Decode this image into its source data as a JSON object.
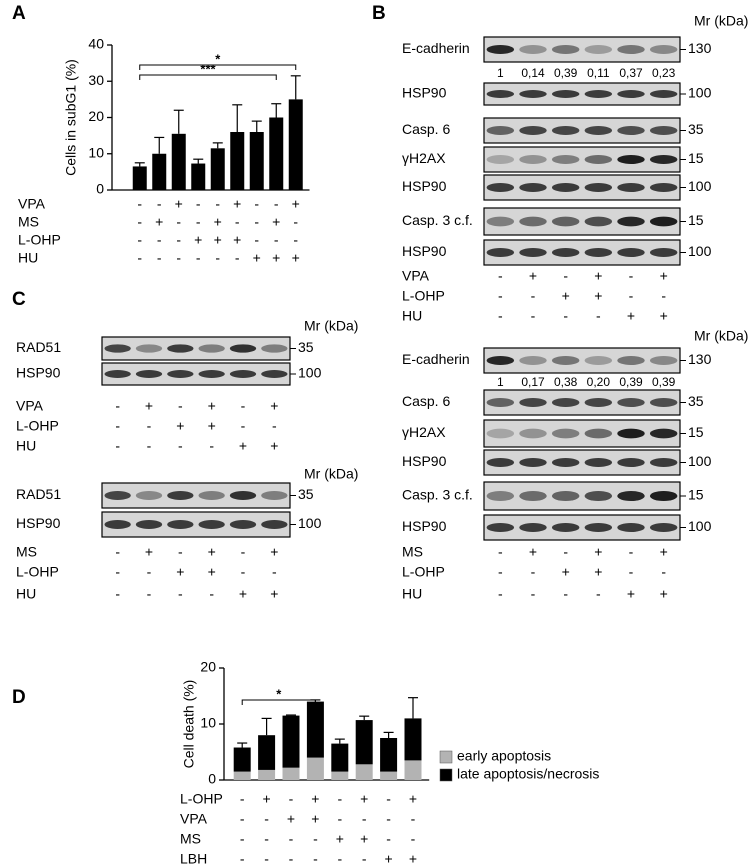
{
  "panel_labels": [
    "A",
    "B",
    "C",
    "D"
  ],
  "chart_data": [
    {
      "type": "bar",
      "ylabel": "Cells in subG1 (%)",
      "values": [
        6.5,
        10,
        15.5,
        7.3,
        11.5,
        16,
        16,
        20,
        25
      ],
      "errors": [
        1,
        4.5,
        6.5,
        1.2,
        1.5,
        7.5,
        3,
        3.8,
        6.5
      ],
      "color": "#000000",
      "ylim": [
        0,
        40
      ],
      "yticks": [
        0,
        10,
        20,
        30,
        40
      ],
      "significance": [
        "*",
        "***"
      ],
      "conditions": [
        {
          "label": "VPA",
          "signs": [
            "-",
            "-",
            "+",
            "-",
            "-",
            "+",
            "-",
            "-",
            "+"
          ]
        },
        {
          "label": "MS",
          "signs": [
            "-",
            "+",
            "-",
            "-",
            "+",
            "-",
            "-",
            "+",
            "-"
          ]
        },
        {
          "label": "L-OHP",
          "signs": [
            "-",
            "-",
            "-",
            "+",
            "+",
            "+",
            "-",
            "-",
            "-"
          ]
        },
        {
          "label": "HU",
          "signs": [
            "-",
            "-",
            "-",
            "-",
            "-",
            "-",
            "+",
            "+",
            "+"
          ]
        }
      ]
    },
    {
      "type": "stacked_bar",
      "ylabel": "Cell death (%)",
      "series": [
        {
          "name": "early apoptosis",
          "color": "#b3b3b3",
          "values": [
            1.5,
            1.8,
            2.2,
            4,
            1.5,
            2.8,
            1.5,
            3.5
          ]
        },
        {
          "name": "late apoptosis/necrosis",
          "color": "#000000",
          "values": [
            4.3,
            6.2,
            9.3,
            10,
            5,
            7.9,
            6,
            7.5
          ],
          "errors": [
            0.8,
            3,
            0.1,
            0.3,
            0.8,
            0.7,
            1,
            3.7
          ]
        }
      ],
      "ylim": [
        0,
        20
      ],
      "yticks": [
        0,
        10,
        20
      ],
      "significance": [
        "*"
      ],
      "conditions": [
        {
          "label": "L-OHP",
          "signs": [
            "-",
            "+",
            "-",
            "+",
            "-",
            "+",
            "-",
            "+"
          ]
        },
        {
          "label": "VPA",
          "signs": [
            "-",
            "-",
            "+",
            "+",
            "-",
            "-",
            "-",
            "-"
          ]
        },
        {
          "label": "MS",
          "signs": [
            "-",
            "-",
            "-",
            "-",
            "+",
            "+",
            "-",
            "-"
          ]
        },
        {
          "label": "LBH",
          "signs": [
            "-",
            "-",
            "-",
            "-",
            "-",
            "-",
            "+",
            "+"
          ]
        }
      ]
    }
  ],
  "blots": [
    {
      "mr_header": "Mr (kDa)",
      "rows": [
        {
          "label": "E-cadherin",
          "mr": "130",
          "quant": [
            "1",
            "0,14",
            "0,39",
            "0,11",
            "0,37",
            "0,23"
          ]
        },
        {
          "label": "HSP90",
          "mr": "100"
        },
        {
          "label": "Casp. 6",
          "mr": "35"
        },
        {
          "label": "γH2AX",
          "mr": "15"
        },
        {
          "label": "HSP90",
          "mr": "100"
        },
        {
          "label": "Casp. 3 c.f.",
          "mr": "15"
        },
        {
          "label": "HSP90",
          "mr": "100"
        }
      ],
      "conditions": [
        {
          "label": "VPA",
          "signs": [
            "-",
            "+",
            "-",
            "+",
            "-",
            "+"
          ]
        },
        {
          "label": "L-OHP",
          "signs": [
            "-",
            "-",
            "+",
            "+",
            "-",
            "-"
          ]
        },
        {
          "label": "HU",
          "signs": [
            "-",
            "-",
            "-",
            "-",
            "+",
            "+"
          ]
        }
      ]
    },
    {
      "mr_header": "Mr (kDa)",
      "rows": [
        {
          "label": "E-cadherin",
          "mr": "130",
          "quant": [
            "1",
            "0,17",
            "0,38",
            "0,20",
            "0,39",
            "0,39"
          ]
        },
        {
          "label": "Casp. 6",
          "mr": "35"
        },
        {
          "label": "γH2AX",
          "mr": "15"
        },
        {
          "label": "HSP90",
          "mr": "100"
        },
        {
          "label": "Casp. 3 c.f.",
          "mr": "15"
        },
        {
          "label": "HSP90",
          "mr": "100"
        }
      ],
      "conditions": [
        {
          "label": "MS",
          "signs": [
            "-",
            "+",
            "-",
            "+",
            "-",
            "+"
          ]
        },
        {
          "label": "L-OHP",
          "signs": [
            "-",
            "-",
            "+",
            "+",
            "-",
            "-"
          ]
        },
        {
          "label": "HU",
          "signs": [
            "-",
            "-",
            "-",
            "-",
            "+",
            "+"
          ]
        }
      ]
    },
    {
      "mr_header": "Mr (kDa)",
      "rows": [
        {
          "label": "RAD51",
          "mr": "35"
        },
        {
          "label": "HSP90",
          "mr": "100"
        }
      ],
      "conditions": [
        {
          "label": "VPA",
          "signs": [
            "-",
            "+",
            "-",
            "+",
            "-",
            "+"
          ]
        },
        {
          "label": "L-OHP",
          "signs": [
            "-",
            "-",
            "+",
            "+",
            "-",
            "-"
          ]
        },
        {
          "label": "HU",
          "signs": [
            "-",
            "-",
            "-",
            "-",
            "+",
            "+"
          ]
        }
      ]
    },
    {
      "mr_header": "Mr (kDa)",
      "rows": [
        {
          "label": "RAD51",
          "mr": "35"
        },
        {
          "label": "HSP90",
          "mr": "100"
        }
      ],
      "conditions": [
        {
          "label": "MS",
          "signs": [
            "-",
            "+",
            "-",
            "+",
            "-",
            "+"
          ]
        },
        {
          "label": "L-OHP",
          "signs": [
            "-",
            "-",
            "+",
            "+",
            "-",
            "-"
          ]
        },
        {
          "label": "HU",
          "signs": [
            "-",
            "-",
            "-",
            "-",
            "+",
            "+"
          ]
        }
      ]
    }
  ]
}
